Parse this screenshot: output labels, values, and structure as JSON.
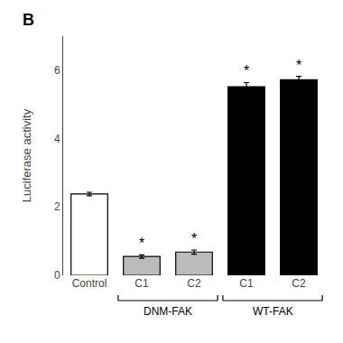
{
  "chart_data": {
    "type": "bar",
    "categories": [
      "Control",
      "C1",
      "C2",
      "C1",
      "C2"
    ],
    "values": [
      2.38,
      0.55,
      0.68,
      5.52,
      5.72
    ],
    "errors": [
      0.05,
      0.05,
      0.06,
      0.12,
      0.1
    ],
    "colors": [
      "#ffffff",
      "#bbbbbb",
      "#bbbbbb",
      "#000000",
      "#000000"
    ],
    "ylabel": "Luciferase activity",
    "ylim": [
      0,
      7.0
    ],
    "yticks": [
      0,
      2,
      4,
      6
    ],
    "grid": false,
    "annotations": [
      {
        "text": "*",
        "x": 1
      },
      {
        "text": "*",
        "x": 2
      },
      {
        "text": "*",
        "x": 3
      },
      {
        "text": "*",
        "x": 4
      }
    ],
    "groups": [
      {
        "label": "DNM-FAK",
        "categories": [
          1,
          2
        ]
      },
      {
        "label": "WT-FAK",
        "categories": [
          3,
          4
        ]
      }
    ],
    "panel_label": "B"
  }
}
